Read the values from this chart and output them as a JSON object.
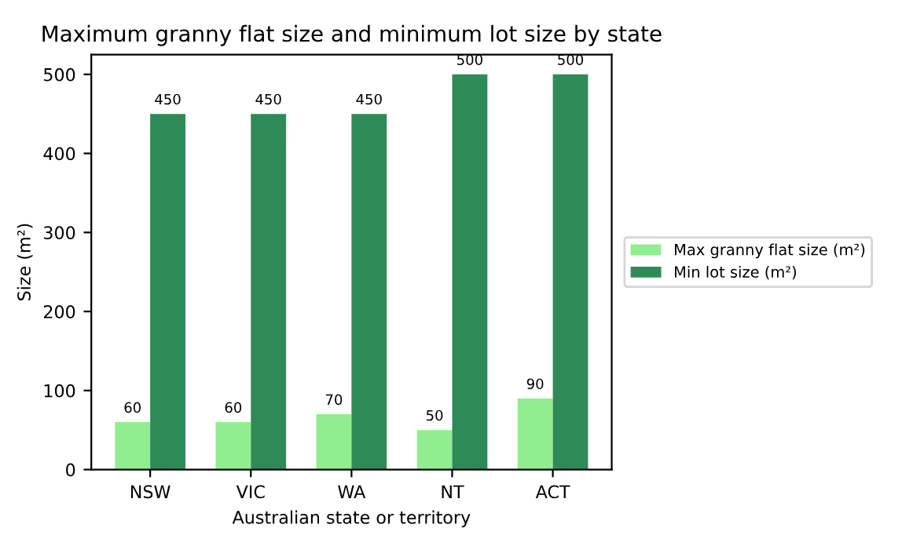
{
  "chart_data": {
    "type": "bar",
    "title": "Maximum granny flat size and minimum lot size by state",
    "xlabel": "Australian state or territory",
    "ylabel": "Size (m²)",
    "categories": [
      "NSW",
      "VIC",
      "WA",
      "NT",
      "ACT"
    ],
    "series": [
      {
        "name": "Max granny flat size (m²)",
        "color": "#90ee90",
        "values": [
          60,
          60,
          70,
          50,
          90
        ]
      },
      {
        "name": "Min lot size (m²)",
        "color": "#2e8b57",
        "values": [
          450,
          450,
          450,
          500,
          500
        ]
      }
    ],
    "ylim": [
      0,
      525
    ],
    "yticks": [
      0,
      100,
      200,
      300,
      400,
      500
    ],
    "data_labels": true,
    "legend": "right",
    "grid": false
  }
}
